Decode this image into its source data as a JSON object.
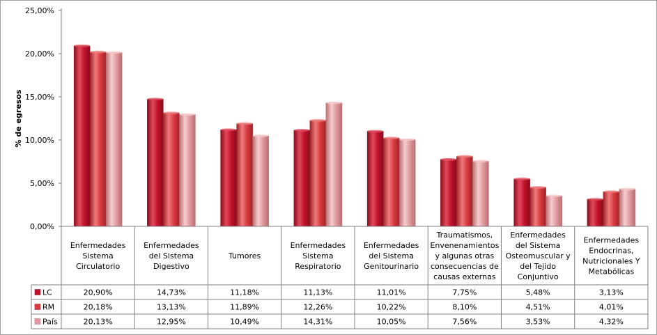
{
  "chart_data": {
    "type": "bar",
    "ylabel": "% de egresos",
    "ylim": [
      0,
      25
    ],
    "yticks": [
      "0,00%",
      "5,00%",
      "10,00%",
      "15,00%",
      "20,00%",
      "25,00%"
    ],
    "categories": [
      [
        "Enfermedades",
        "Sistema",
        "Circulatorio"
      ],
      [
        "Enfermedades",
        "del Sistema",
        "Digestivo"
      ],
      [
        "Tumores"
      ],
      [
        "Enfermedades",
        "Sistema",
        "Respiratorio"
      ],
      [
        "Enfermedades",
        "del Sistema",
        "Genitourinario"
      ],
      [
        "Traumatismos,",
        "Envenenamientos",
        "y algunas otras",
        "consecuencias de",
        "causas externas"
      ],
      [
        "Enfermedades",
        "del Sistema",
        "Osteomuscular y",
        "del Tejido",
        "Conjuntivo"
      ],
      [
        "Enfermedades",
        "Endocrinas,",
        "Nutricionales Y",
        "Metabólicas"
      ]
    ],
    "series": [
      {
        "name": "LC",
        "values": [
          20.9,
          14.73,
          11.18,
          11.13,
          11.01,
          7.75,
          5.48,
          3.13
        ],
        "labels": [
          "20,90%",
          "14,73%",
          "11,18%",
          "11,13%",
          "11,01%",
          "7,75%",
          "5,48%",
          "3,13%"
        ],
        "color": "#c0122b",
        "light": "#e24a5c",
        "dark": "#8a0b1e"
      },
      {
        "name": "RM",
        "values": [
          20.18,
          13.13,
          11.89,
          12.26,
          10.22,
          8.1,
          4.51,
          4.01
        ],
        "labels": [
          "20,18%",
          "13,13%",
          "11,89%",
          "12,26%",
          "10,22%",
          "8,10%",
          "4,51%",
          "4,01%"
        ],
        "color": "#d93a3f",
        "light": "#f07a7c",
        "dark": "#a02428"
      },
      {
        "name": "País",
        "values": [
          20.13,
          12.95,
          10.49,
          14.31,
          10.05,
          7.56,
          3.53,
          4.32
        ],
        "labels": [
          "20,13%",
          "12,95%",
          "10,49%",
          "14,31%",
          "10,05%",
          "7,56%",
          "3,53%",
          "4,32%"
        ],
        "color": "#e09a9e",
        "light": "#f6cdcf",
        "dark": "#b86d72"
      }
    ],
    "grid": false,
    "legend": "table-left"
  }
}
